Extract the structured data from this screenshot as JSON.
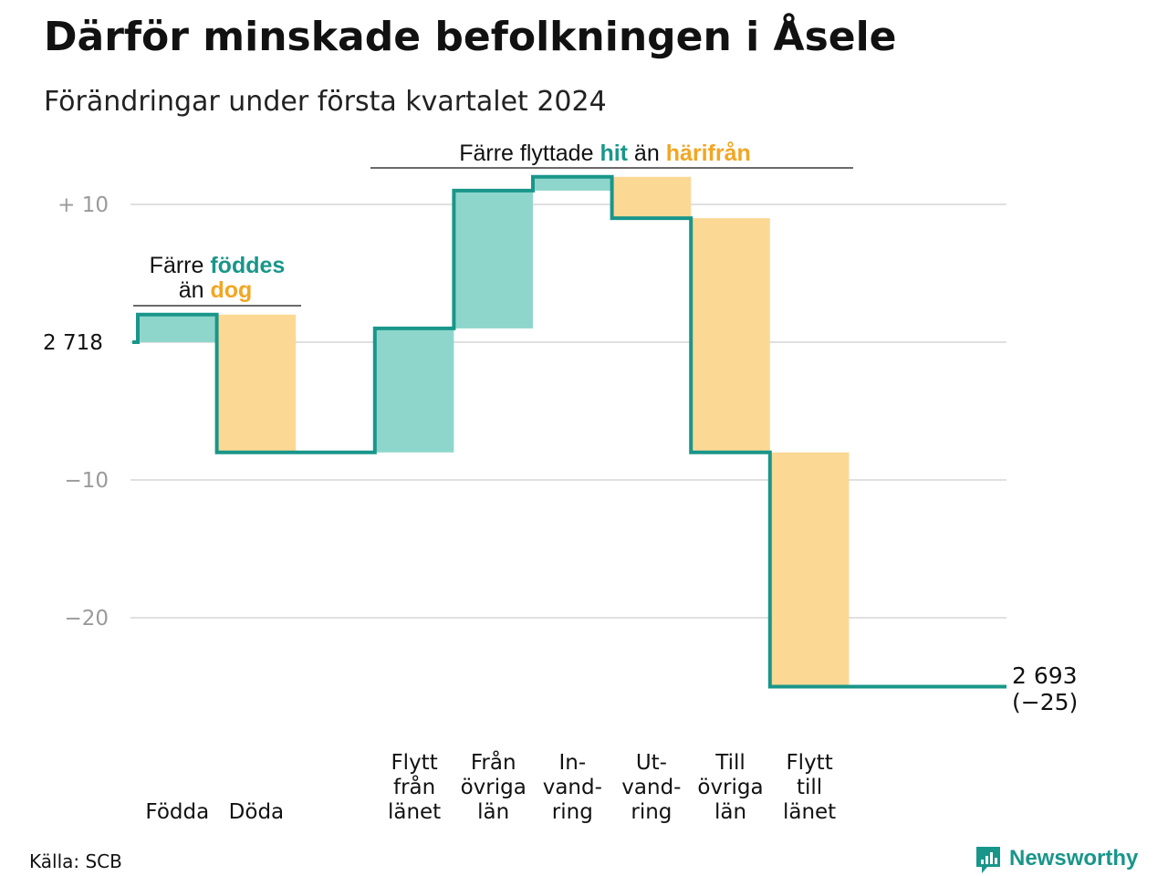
{
  "title": "Därför minskade befolkningen i Åsele",
  "subtitle": "Förändringar under första kvartalet 2024",
  "source": "Källa: SCB",
  "brand": "Newsworthy",
  "colors": {
    "teal": "#19968a",
    "teal_fill": "#8ed6cc",
    "orange": "#f2a623",
    "orange_fill": "#fbd894",
    "grid": "#e0e0e0",
    "tick": "#9a9a9a"
  },
  "annotations": {
    "births": {
      "part1": "Färre ",
      "highlight1": "föddes",
      "part2": "än ",
      "highlight2": "dog"
    },
    "migration": {
      "part1": "Färre flyttade ",
      "highlight1": "hit",
      "part2": " än ",
      "highlight2": "härifrån"
    }
  },
  "chart_data": {
    "type": "waterfall",
    "start_value": 2718,
    "start_label": "2 718",
    "end_value": 2693,
    "end_label": "2 693",
    "end_change_label": "(−25)",
    "y_ticks": [
      {
        "value": 10,
        "label": "+  10"
      },
      {
        "value": 0,
        "label": "2 718"
      },
      {
        "value": -10,
        "label": "−10"
      },
      {
        "value": -20,
        "label": "−20"
      }
    ],
    "ylim": [
      -25,
      12
    ],
    "steps": [
      {
        "label_lines": [
          "Födda"
        ],
        "change": 2,
        "kind": "in"
      },
      {
        "label_lines": [
          "Döda"
        ],
        "change": -10,
        "kind": "out"
      },
      {
        "label_lines": [],
        "change": 0,
        "kind": "gap"
      },
      {
        "label_lines": [
          "Flytt",
          "från",
          "länet"
        ],
        "change": 9,
        "kind": "in"
      },
      {
        "label_lines": [
          "Från",
          "övriga",
          "län"
        ],
        "change": 10,
        "kind": "in"
      },
      {
        "label_lines": [
          "In-",
          "vand-",
          "ring"
        ],
        "change": 1,
        "kind": "in"
      },
      {
        "label_lines": [
          "Ut-",
          "vand-",
          "ring"
        ],
        "change": -3,
        "kind": "out"
      },
      {
        "label_lines": [
          "Till",
          "övriga",
          "län"
        ],
        "change": -17,
        "kind": "out"
      },
      {
        "label_lines": [
          "Flytt",
          "till",
          "länet"
        ],
        "change": -17,
        "kind": "out"
      }
    ],
    "grid": true
  }
}
